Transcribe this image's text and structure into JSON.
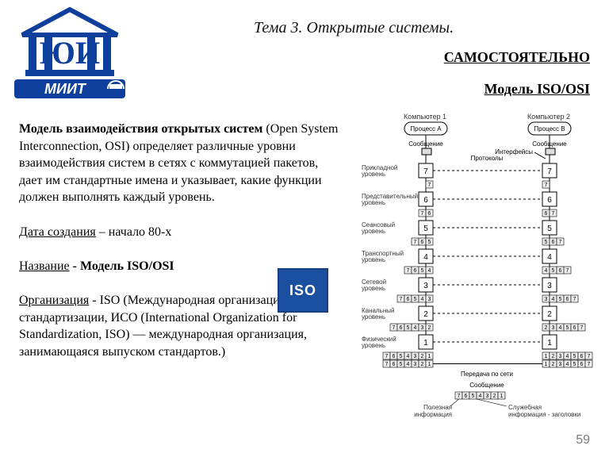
{
  "logo": {
    "top_text": "ЮИ",
    "bottom_text": "МИИТ",
    "pillar_color": "#0f3f9c",
    "band_color": "#0f3f9c",
    "band_text_color": "#ffffff"
  },
  "header": {
    "topic": "Тема 3. Открытые системы.",
    "self_study": "САМОСТОЯТЕЛЬНО",
    "model": "Модель   ISO/OSI"
  },
  "paragraph": {
    "bold_lead": "Модель взаимодействия открытых систем",
    "rest1": " (Open System Interconnection, OSI) определяет различные уровни взаимодействия систем в сетях с коммутацией пакетов, дает им стандартные имена и указывает, какие функции должен выполнять каждый уровень.",
    "date_label": "Дата создания",
    "date_value": " – начало 80-х",
    "name_label": "Название",
    "name_value": "  -  Модель   ISO/OSI",
    "org_label": "Организация",
    "org_value": "  - ISO   (Международная организация по стандартизации, ИСО (International Organization for Standardization, ISO) — международная организация, занимающаяся выпуском стандартов.)"
  },
  "iso_badge": {
    "text": "ISO",
    "bg": "#1b4fa0"
  },
  "page_number": "59",
  "diagram": {
    "type": "network-layers",
    "background": "#ffffff",
    "box_stroke": "#000000",
    "line_color": "#000000",
    "font_size_small": 8,
    "font_size_label": 9,
    "computer1": "Компьютер 1",
    "computer2": "Компьютер 2",
    "processA": "Процесс A",
    "processB": "Процесс B",
    "message": "Сообщение",
    "protocols": "Протоколы",
    "interfaces": "Интерфейсы",
    "transmit": "Передача по сети",
    "useful": "Полезная",
    "useful2": "информация",
    "service": "Служебная",
    "service2": "информация - заголовки",
    "layers": [
      {
        "n": 7,
        "ru": "Прикладной",
        "ru2": "уровень",
        "pduL": [
          "7"
        ],
        "pduR": [
          "7"
        ]
      },
      {
        "n": 6,
        "ru": "Представительный",
        "ru2": "уровень",
        "pduL": [
          "7",
          "6"
        ],
        "pduR": [
          "6",
          "7"
        ]
      },
      {
        "n": 5,
        "ru": "Сеансовый",
        "ru2": "уровень",
        "pduL": [
          "7",
          "6",
          "5"
        ],
        "pduR": [
          "5",
          "6",
          "7"
        ]
      },
      {
        "n": 4,
        "ru": "Транспортный",
        "ru2": "уровень",
        "pduL": [
          "7",
          "6",
          "5",
          "4"
        ],
        "pduR": [
          "4",
          "5",
          "6",
          "7"
        ]
      },
      {
        "n": 3,
        "ru": "Сетевой",
        "ru2": "уровень",
        "pduL": [
          "7",
          "6",
          "5",
          "4",
          "3"
        ],
        "pduR": [
          "3",
          "4",
          "5",
          "6",
          "7"
        ]
      },
      {
        "n": 2,
        "ru": "Канальный",
        "ru2": "уровень",
        "pduL": [
          "7",
          "6",
          "5",
          "4",
          "3",
          "2"
        ],
        "pduR": [
          "2",
          "3",
          "4",
          "5",
          "6",
          "7"
        ]
      },
      {
        "n": 1,
        "ru": "Физический",
        "ru2": "уровень",
        "pduL": [
          "7",
          "6",
          "5",
          "4",
          "3",
          "2",
          "1"
        ],
        "pduR": [
          "1",
          "2",
          "3",
          "4",
          "5",
          "6",
          "7"
        ]
      }
    ],
    "bottom_pdu": [
      "7",
      "6",
      "5",
      "4",
      "3",
      "2",
      "1"
    ]
  }
}
